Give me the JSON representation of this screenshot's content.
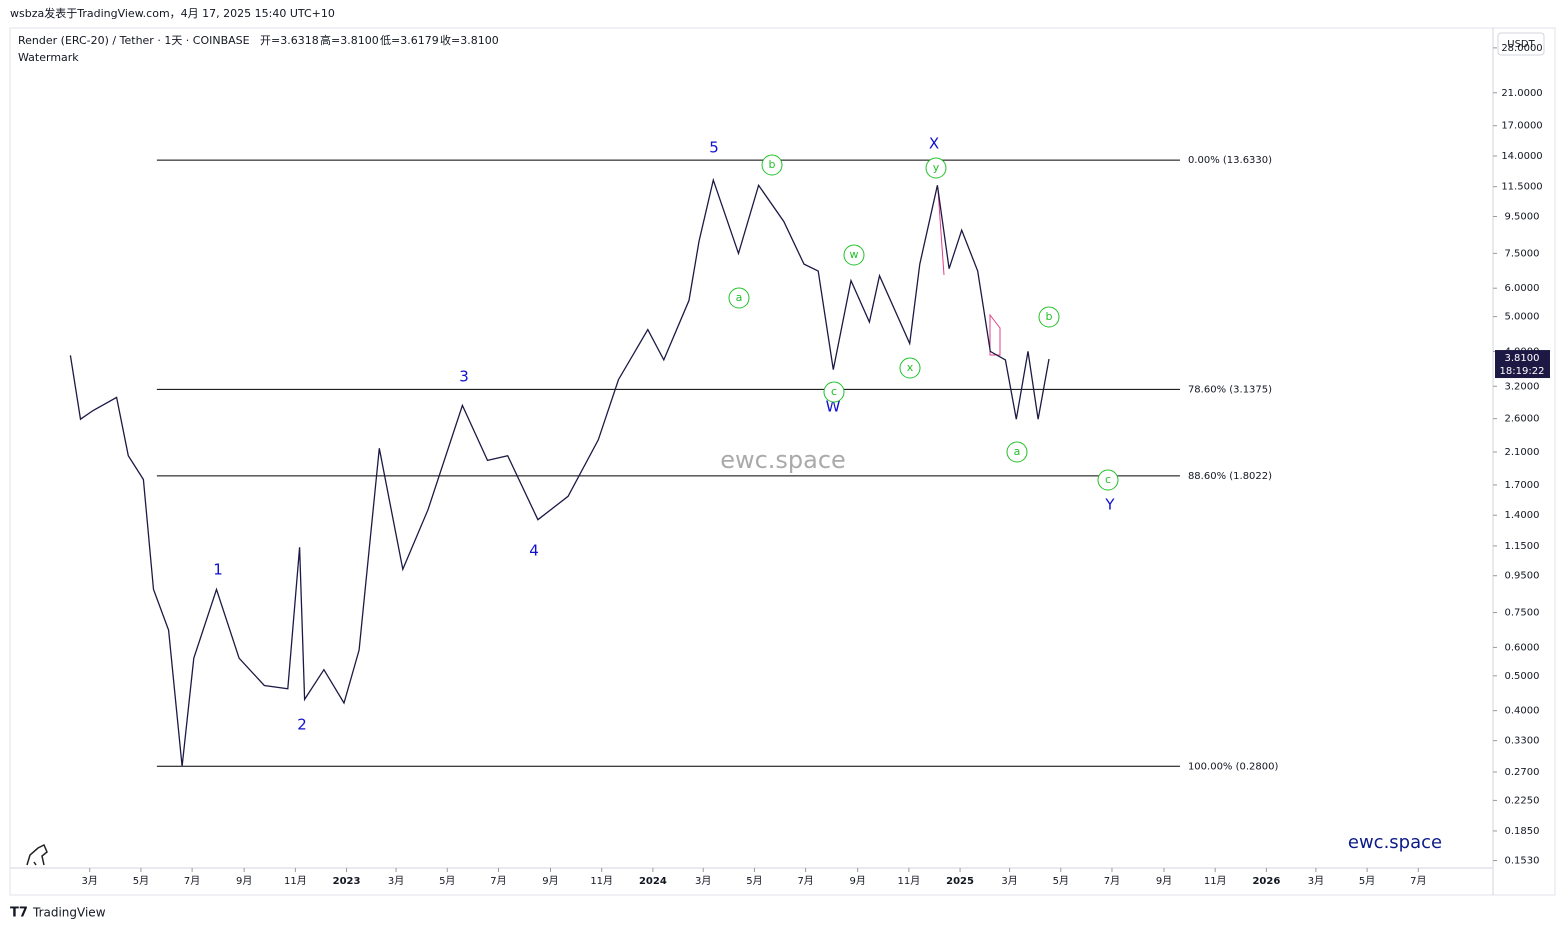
{
  "header": {
    "publisher": "wsbza发表于TradingView.com，4月 17, 2025 15:40 UTC+10",
    "symbol": "Render (ERC-20) / Tether · 1天 · COINBASE",
    "ohlc": [
      "开=3.6318",
      "高=3.8100",
      "低=3.6179",
      "收=3.8100"
    ],
    "study": "Watermark",
    "currency": "USDT",
    "last_price": "3.8100",
    "countdown": "18:19:22"
  },
  "chart_data": {
    "type": "line",
    "log_scale": true,
    "color": "#1c1a45",
    "x": [
      "2022-02-06",
      "2022-02-18",
      "2022-03-05",
      "2022-04-02",
      "2022-04-16",
      "2022-05-04",
      "2022-05-16",
      "2022-06-03",
      "2022-06-19",
      "2022-07-03",
      "2022-07-30",
      "2022-08-26",
      "2022-09-25",
      "2022-10-23",
      "2022-11-06",
      "2022-11-12",
      "2022-12-05",
      "2022-12-29",
      "2023-01-16",
      "2023-02-09",
      "2023-03-09",
      "2023-04-08",
      "2023-05-19",
      "2023-06-18",
      "2023-07-12",
      "2023-08-17",
      "2023-09-22",
      "2023-10-28",
      "2023-11-21",
      "2023-12-26",
      "2024-01-14",
      "2024-02-13",
      "2024-02-25",
      "2024-03-13",
      "2024-04-12",
      "2024-05-06",
      "2024-06-05",
      "2024-06-29",
      "2024-07-16",
      "2024-08-03",
      "2024-08-24",
      "2024-09-15",
      "2024-09-27",
      "2024-11-02",
      "2024-11-14",
      "2024-12-05",
      "2024-12-19",
      "2025-01-03",
      "2025-01-22",
      "2025-02-06",
      "2025-02-24",
      "2025-03-09",
      "2025-03-23",
      "2025-04-04",
      "2025-04-17"
    ],
    "values": [
      3.9,
      2.59,
      2.74,
      2.98,
      2.05,
      1.76,
      0.87,
      0.67,
      0.28,
      0.56,
      0.87,
      0.56,
      0.47,
      0.46,
      1.14,
      0.43,
      0.52,
      0.42,
      0.59,
      2.15,
      0.99,
      1.45,
      2.83,
      1.99,
      2.05,
      1.36,
      1.58,
      2.27,
      3.34,
      4.6,
      3.79,
      5.55,
      8.1,
      12.0,
      7.5,
      11.6,
      9.2,
      7.0,
      6.7,
      3.56,
      6.3,
      4.83,
      6.5,
      4.21,
      7.0,
      11.6,
      6.8,
      8.7,
      6.7,
      4.0,
      3.79,
      2.59,
      4.0,
      2.59,
      3.81
    ],
    "xlim": [
      "2021-11-26",
      "2026-09-28"
    ],
    "ylim": [
      0.1227,
      31.4
    ],
    "yticks": [
      {
        "value": 28,
        "label": "28.0000"
      },
      {
        "value": 21,
        "label": "21.0000"
      },
      {
        "value": 17,
        "label": "17.0000"
      },
      {
        "value": 14,
        "label": "14.0000"
      },
      {
        "value": 11.5,
        "label": "11.5000"
      },
      {
        "value": 9.5,
        "label": "9.5000"
      },
      {
        "value": 7.5,
        "label": "7.5000"
      },
      {
        "value": 6,
        "label": "6.0000"
      },
      {
        "value": 5,
        "label": "5.0000"
      },
      {
        "value": 4,
        "label": "4.0000"
      },
      {
        "value": 3.2,
        "label": "3.2000"
      },
      {
        "value": 2.6,
        "label": "2.6000"
      },
      {
        "value": 2.1,
        "label": "2.1000"
      },
      {
        "value": 1.7,
        "label": "1.7000"
      },
      {
        "value": 1.4,
        "label": "1.4000"
      },
      {
        "value": 1.15,
        "label": "1.1500"
      },
      {
        "value": 0.95,
        "label": "0.9500"
      },
      {
        "value": 0.75,
        "label": "0.7500"
      },
      {
        "value": 0.6,
        "label": "0.6000"
      },
      {
        "value": 0.5,
        "label": "0.5000"
      },
      {
        "value": 0.4,
        "label": "0.4000"
      },
      {
        "value": 0.33,
        "label": "0.3300"
      },
      {
        "value": 0.27,
        "label": "0.2700"
      },
      {
        "value": 0.225,
        "label": "0.2250"
      },
      {
        "value": 0.185,
        "label": "0.1850"
      },
      {
        "value": 0.153,
        "label": "0.1530"
      }
    ],
    "xticks": [
      {
        "value": "2022-03-01",
        "label": "3月"
      },
      {
        "value": "2022-05-01",
        "label": "5月"
      },
      {
        "value": "2022-07-01",
        "label": "7月"
      },
      {
        "value": "2022-09-01",
        "label": "9月"
      },
      {
        "value": "2022-11-01",
        "label": "11月"
      },
      {
        "value": "2023-01-01",
        "label": "2023"
      },
      {
        "value": "2023-03-01",
        "label": "3月"
      },
      {
        "value": "2023-05-01",
        "label": "5月"
      },
      {
        "value": "2023-07-01",
        "label": "7月"
      },
      {
        "value": "2023-09-01",
        "label": "9月"
      },
      {
        "value": "2023-11-01",
        "label": "11月"
      },
      {
        "value": "2024-01-01",
        "label": "2024"
      },
      {
        "value": "2024-03-01",
        "label": "3月"
      },
      {
        "value": "2024-05-01",
        "label": "5月"
      },
      {
        "value": "2024-07-01",
        "label": "7月"
      },
      {
        "value": "2024-09-01",
        "label": "9月"
      },
      {
        "value": "2024-11-01",
        "label": "11月"
      },
      {
        "value": "2025-01-01",
        "label": "2025"
      },
      {
        "value": "2025-03-01",
        "label": "3月"
      },
      {
        "value": "2025-05-01",
        "label": "5月"
      },
      {
        "value": "2025-07-01",
        "label": "7月"
      },
      {
        "value": "2025-09-01",
        "label": "9月"
      },
      {
        "value": "2025-11-01",
        "label": "11月"
      },
      {
        "value": "2026-01-01",
        "label": "2026"
      },
      {
        "value": "2026-03-01",
        "label": "3月"
      },
      {
        "value": "2026-05-01",
        "label": "5月"
      },
      {
        "value": "2026-07-01",
        "label": "7月"
      }
    ],
    "fib_levels": [
      {
        "value": 13.633,
        "label": "0.00% (13.6330)"
      },
      {
        "value": 3.1375,
        "label": "78.60% (3.1375)"
      },
      {
        "value": 1.8022,
        "label": "88.60% (1.8022)"
      },
      {
        "value": 0.28,
        "label": "100.00% (0.2800)"
      }
    ],
    "fib_start": "2022-05-20",
    "fib_end": "2025-09-20",
    "wave_labels": [
      "1",
      "2",
      "3",
      "4",
      "5",
      "W",
      "X",
      "Y"
    ],
    "subwave_labels": [
      "a",
      "b",
      "c",
      "w",
      "x",
      "y",
      "a",
      "b",
      "c"
    ],
    "watermark": "ewc.space"
  },
  "footer": {
    "brand": "TradingView"
  }
}
